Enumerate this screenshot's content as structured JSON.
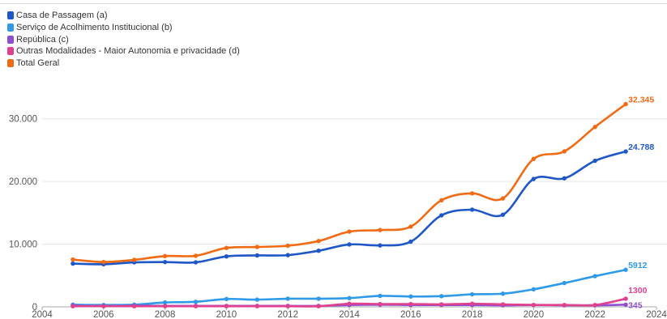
{
  "chart_data": {
    "type": "line",
    "title": "",
    "xlabel": "",
    "ylabel": "",
    "xlim": [
      2004,
      2024
    ],
    "ylim": [
      0,
      35000
    ],
    "x_ticks": [
      "2004",
      "2006",
      "2008",
      "2010",
      "2012",
      "2014",
      "2016",
      "2018",
      "2020",
      "2022",
      "2024"
    ],
    "y_ticks": [
      "0",
      "10.000",
      "20.000",
      "30.000"
    ],
    "grid": "horizontal",
    "legend_position": "top-left",
    "x": [
      2005,
      2006,
      2007,
      2008,
      2009,
      2010,
      2011,
      2012,
      2013,
      2014,
      2015,
      2016,
      2017,
      2018,
      2019,
      2020,
      2021,
      2022,
      2023
    ],
    "series": [
      {
        "name": "Casa de Passagem (a)",
        "color": "#1f57c7",
        "values": [
          6900,
          6800,
          7100,
          7150,
          7100,
          8050,
          8200,
          8250,
          8950,
          9950,
          9800,
          10400,
          14600,
          15500,
          14700,
          20400,
          20500,
          23300,
          24788
        ],
        "end_label": "24.788"
      },
      {
        "name": "Serviço de Acolhimento Institucional (b)",
        "color": "#2e9ae8",
        "values": [
          350,
          300,
          350,
          700,
          800,
          1250,
          1150,
          1300,
          1300,
          1400,
          1750,
          1650,
          1700,
          2000,
          2100,
          2800,
          3800,
          4900,
          5912
        ],
        "end_label": "5912"
      },
      {
        "name": "República (c)",
        "color": "#8e4fd1",
        "values": [
          200,
          150,
          200,
          150,
          150,
          150,
          150,
          150,
          150,
          300,
          350,
          300,
          300,
          300,
          250,
          300,
          250,
          250,
          345
        ],
        "end_label": "345"
      },
      {
        "name": "Outras Modalidades - Maior Autonomia e privacidade (d)",
        "color": "#e0418f",
        "values": [
          100,
          100,
          100,
          100,
          100,
          100,
          100,
          100,
          100,
          500,
          450,
          450,
          400,
          500,
          400,
          300,
          300,
          300,
          1300
        ],
        "end_label": "1300"
      },
      {
        "name": "Total Geral",
        "color": "#f06b14",
        "values": [
          7550,
          7150,
          7500,
          8100,
          8150,
          9400,
          9550,
          9750,
          10500,
          12000,
          12250,
          12800,
          17000,
          18100,
          17300,
          23600,
          24800,
          28700,
          32345
        ],
        "end_label": "32.345"
      }
    ]
  }
}
